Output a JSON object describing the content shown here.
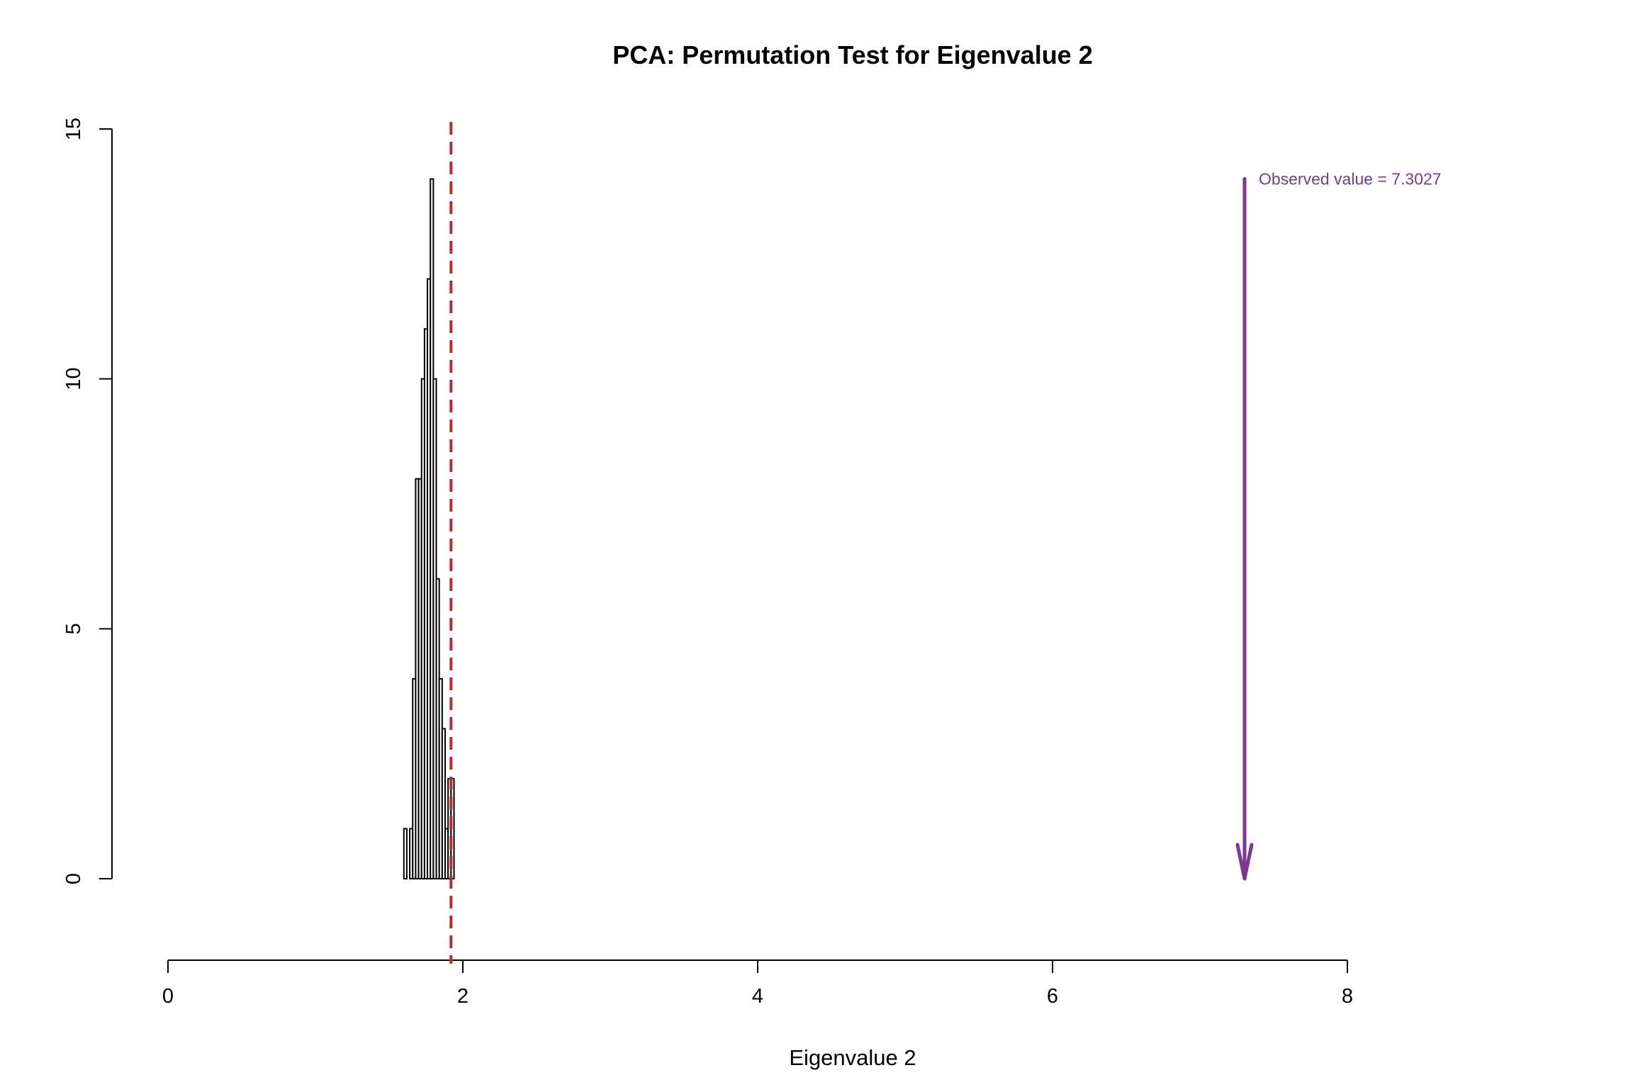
{
  "chart_data": {
    "type": "bar",
    "title": "PCA: Permutation Test for Eigenvalue 2",
    "xlabel": "Eigenvalue 2",
    "ylabel": "",
    "xlim": [
      0,
      8
    ],
    "ylim": [
      0,
      15
    ],
    "x_ticks": [
      0,
      2,
      4,
      6,
      8
    ],
    "y_ticks": [
      0,
      5,
      10,
      15
    ],
    "grid": false,
    "bin_width": 0.02,
    "histogram": {
      "bin_starts": [
        1.6,
        1.62,
        1.64,
        1.66,
        1.68,
        1.7,
        1.72,
        1.74,
        1.76,
        1.78,
        1.8,
        1.82,
        1.84,
        1.86,
        1.88,
        1.9,
        1.92
      ],
      "counts": [
        1,
        0,
        1,
        4,
        8,
        8,
        10,
        11,
        12,
        14,
        10,
        6,
        4,
        3,
        1,
        2,
        2
      ],
      "fill": "#ffffff",
      "stroke": "#000000"
    },
    "critical_line": {
      "x": 1.92,
      "color": "#bd2a2a",
      "style": "dashed"
    },
    "observed": {
      "x": 7.3027,
      "y_top": 14,
      "y_bottom": 0,
      "label": "Observed value = 7.3027",
      "color": "#7b3a8f"
    }
  }
}
